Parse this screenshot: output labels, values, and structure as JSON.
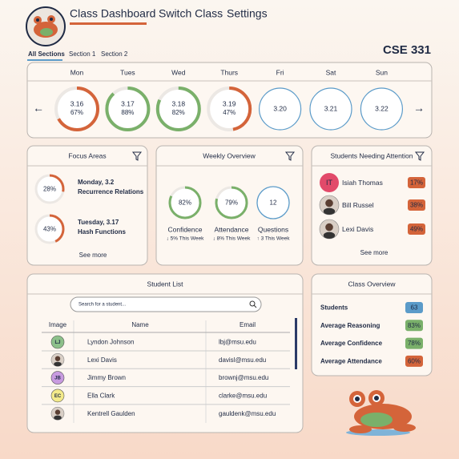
{
  "nav": {
    "items": [
      "Class Dashboard",
      "Switch Class",
      "Settings"
    ]
  },
  "tabs": [
    "All Sections",
    "Section 1",
    "Section 2"
  ],
  "course": "CSE 331",
  "week": {
    "days": [
      {
        "day": "Mon",
        "date": "3.16",
        "percent": 67,
        "percent_label": "67%",
        "color": "#d4643a"
      },
      {
        "day": "Tues",
        "date": "3.17",
        "percent": 88,
        "percent_label": "88%",
        "color": "#7ab06a"
      },
      {
        "day": "Wed",
        "date": "3.18",
        "percent": 82,
        "percent_label": "82%",
        "color": "#7ab06a"
      },
      {
        "day": "Thurs",
        "date": "3.19",
        "percent": 47,
        "percent_label": "47%",
        "color": "#d4643a"
      },
      {
        "day": "Fri",
        "date": "3.20",
        "color": "#5b9bc9"
      },
      {
        "day": "Sat",
        "date": "3.21",
        "color": "#5b9bc9"
      },
      {
        "day": "Sun",
        "date": "3.22",
        "color": "#5b9bc9"
      }
    ]
  },
  "focus_areas": {
    "title": "Focus Areas",
    "see_more": "See more",
    "items": [
      {
        "percent": 28,
        "percent_label": "28%",
        "date": "Monday, 3.2",
        "topic": "Recurrence Relations",
        "color": "#d4643a"
      },
      {
        "percent": 43,
        "percent_label": "43%",
        "date": "Tuesday, 3.17",
        "topic": "Hash Functions",
        "color": "#d4643a"
      }
    ]
  },
  "weekly_overview": {
    "title": "Weekly Overview",
    "metrics": [
      {
        "value": 82,
        "value_label": "82%",
        "name": "Confidence",
        "change": "↓ 5% This Week",
        "color": "#7ab06a",
        "trend_color": "#d4643a"
      },
      {
        "value": 79,
        "value_label": "79%",
        "name": "Attendance",
        "change": "↓ 8% This Week",
        "color": "#7ab06a",
        "trend_color": "#d4643a"
      },
      {
        "value": 12,
        "name": "Questions",
        "change": "↑ 3 This Week",
        "color": "#5b9bc9",
        "trend_color": "#7ab06a"
      }
    ]
  },
  "attention": {
    "title": "Students Needing Attention",
    "see_more": "See more",
    "students": [
      {
        "initials": "IT",
        "name": "Isiah Thomas",
        "score": "17%"
      },
      {
        "name": "Bill Russel",
        "score": "38%"
      },
      {
        "name": "Lexi Davis",
        "score": "49%"
      }
    ]
  },
  "student_list": {
    "title": "Student List",
    "search_placeholder": "Search for a student...",
    "columns": [
      "Image",
      "Name",
      "Email"
    ],
    "rows": [
      {
        "initials": "LJ",
        "name": "Lyndon Johnson",
        "email": "lbj@msu.edu",
        "avatar_color": "#8cc08a"
      },
      {
        "name": "Lexi Davis",
        "email": "davisl@msu.edu"
      },
      {
        "initials": "JB",
        "name": "Jimmy Brown",
        "email": "brownj@msu.edu",
        "avatar_color": "#c89be0"
      },
      {
        "initials": "EC",
        "name": "Ella Clark",
        "email": "clarke@msu.edu",
        "avatar_color": "#f3ea8a"
      },
      {
        "name": "Kentrell Gaulden",
        "email": "gauldenk@msu.edu"
      }
    ]
  },
  "class_overview": {
    "title": "Class Overview",
    "rows": [
      {
        "label": "Students",
        "value": "63",
        "color": "#5b9bc9"
      },
      {
        "label": "Average Reasoning",
        "value": "83%",
        "color": "#7ab06a"
      },
      {
        "label": "Average Confidence",
        "value": "78%",
        "color": "#7ab06a"
      },
      {
        "label": "Average Attendance",
        "value": "60%",
        "color": "#d4643a"
      }
    ]
  }
}
